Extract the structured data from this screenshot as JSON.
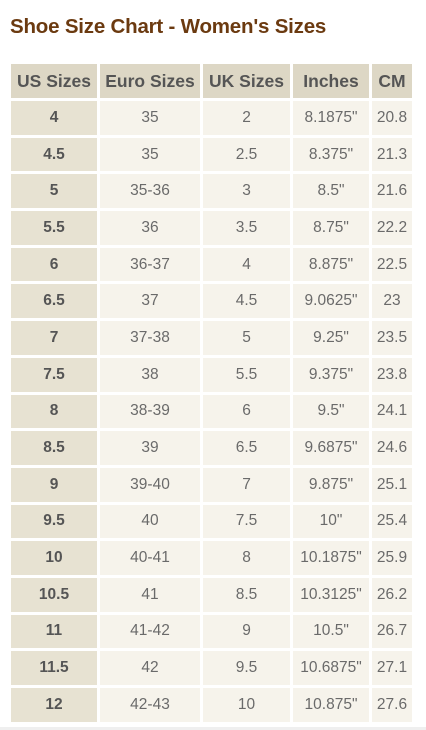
{
  "title": "Shoe Size Chart - Women's Sizes",
  "columns": [
    "US Sizes",
    "Euro Sizes",
    "UK Sizes",
    "Inches",
    "CM"
  ],
  "rows": [
    [
      "4",
      "35",
      "2",
      "8.1875\"",
      "20.8"
    ],
    [
      "4.5",
      "35",
      "2.5",
      "8.375\"",
      "21.3"
    ],
    [
      "5",
      "35-36",
      "3",
      "8.5\"",
      "21.6"
    ],
    [
      "5.5",
      "36",
      "3.5",
      "8.75\"",
      "22.2"
    ],
    [
      "6",
      "36-37",
      "4",
      "8.875\"",
      "22.5"
    ],
    [
      "6.5",
      "37",
      "4.5",
      "9.0625\"",
      "23"
    ],
    [
      "7",
      "37-38",
      "5",
      "9.25\"",
      "23.5"
    ],
    [
      "7.5",
      "38",
      "5.5",
      "9.375\"",
      "23.8"
    ],
    [
      "8",
      "38-39",
      "6",
      "9.5\"",
      "24.1"
    ],
    [
      "8.5",
      "39",
      "6.5",
      "9.6875\"",
      "24.6"
    ],
    [
      "9",
      "39-40",
      "7",
      "9.875\"",
      "25.1"
    ],
    [
      "9.5",
      "40",
      "7.5",
      "10\"",
      "25.4"
    ],
    [
      "10",
      "40-41",
      "8",
      "10.1875\"",
      "25.9"
    ],
    [
      "10.5",
      "41",
      "8.5",
      "10.3125\"",
      "26.2"
    ],
    [
      "11",
      "41-42",
      "9",
      "10.5\"",
      "26.7"
    ],
    [
      "11.5",
      "42",
      "9.5",
      "10.6875\"",
      "27.1"
    ],
    [
      "12",
      "42-43",
      "10",
      "10.875\"",
      "27.6"
    ]
  ],
  "colors": {
    "title": "#6b3a10",
    "header_bg": "#ddd7c5",
    "first_col_bg": "#e7e2d2",
    "cell_bg": "#f6f3eb"
  }
}
